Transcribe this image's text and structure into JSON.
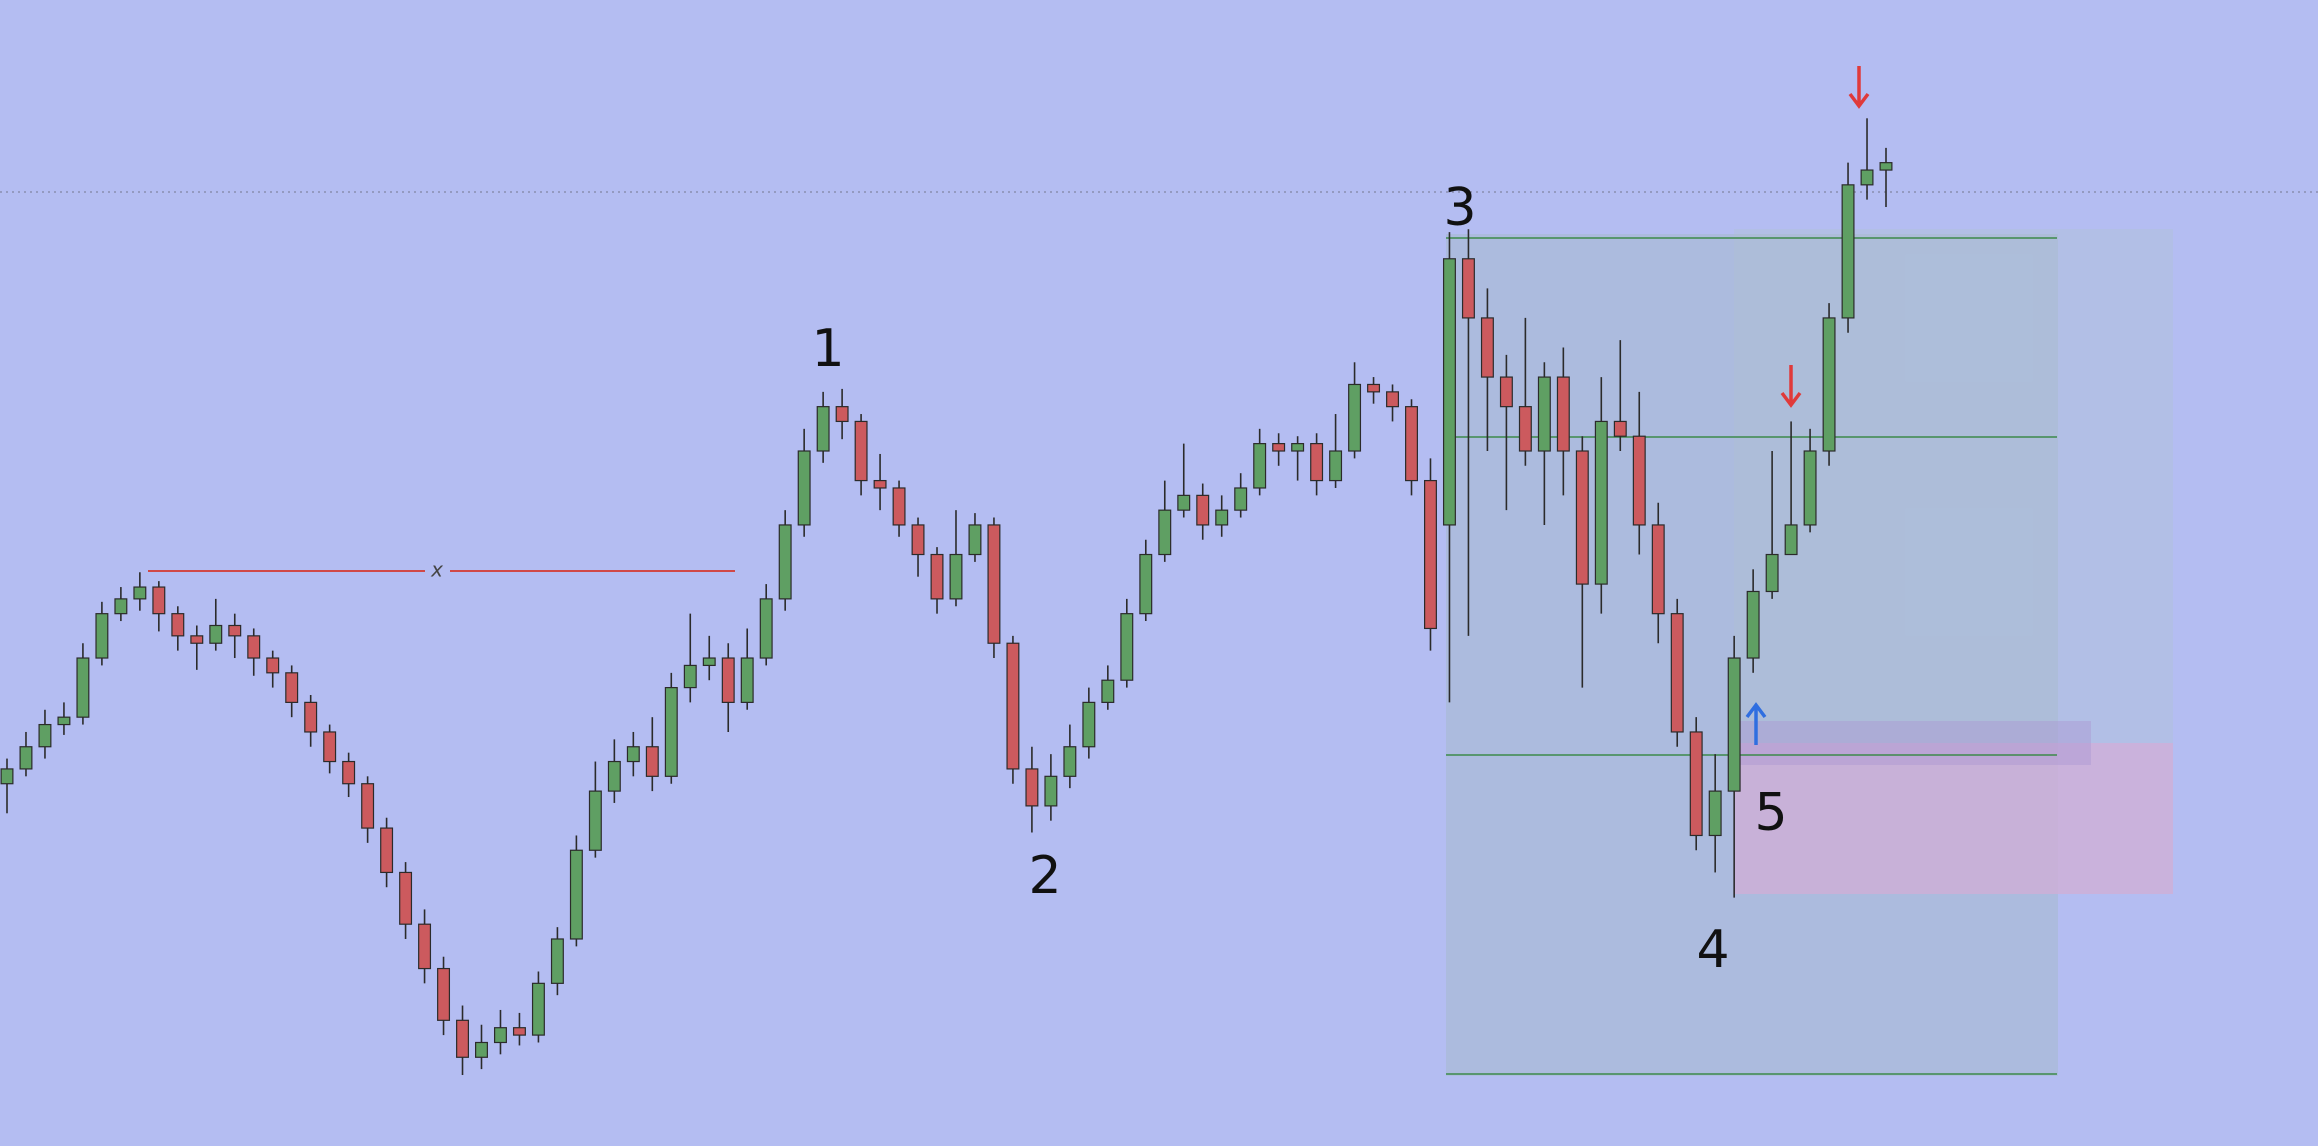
{
  "chart_data": {
    "type": "candlestick",
    "open": [
      245,
      255,
      270,
      285,
      290,
      330,
      360,
      370,
      378,
      360,
      345,
      340,
      352,
      345,
      330,
      320,
      300,
      280,
      260,
      245,
      215,
      185,
      150,
      120,
      85,
      60,
      70,
      80,
      75,
      110,
      140,
      200,
      240,
      260,
      270,
      250,
      310,
      325,
      330,
      300,
      330,
      370,
      420,
      470,
      500,
      490,
      450,
      445,
      420,
      400,
      370,
      400,
      420,
      340,
      255,
      230,
      250,
      270,
      300,
      315,
      360,
      400,
      430,
      440,
      420,
      430,
      445,
      475,
      470,
      475,
      450,
      470,
      515,
      510,
      500,
      450,
      420,
      600,
      560,
      520,
      500,
      470,
      520,
      470,
      380,
      490,
      480,
      420,
      360,
      280,
      210,
      240,
      330,
      375,
      400,
      420,
      470,
      560,
      650,
      660
    ],
    "high": [
      262,
      280,
      295,
      300,
      340,
      368,
      378,
      388,
      382,
      365,
      352,
      370,
      360,
      350,
      335,
      325,
      305,
      285,
      266,
      250,
      222,
      192,
      160,
      128,
      95,
      82,
      92,
      90,
      118,
      148,
      210,
      260,
      275,
      280,
      290,
      320,
      360,
      345,
      340,
      350,
      380,
      430,
      485,
      510,
      512,
      495,
      468,
      450,
      425,
      405,
      430,
      428,
      425,
      345,
      270,
      265,
      285,
      310,
      325,
      370,
      410,
      450,
      475,
      448,
      440,
      455,
      485,
      482,
      480,
      482,
      495,
      530,
      520,
      515,
      505,
      465,
      618,
      620,
      580,
      535,
      560,
      530,
      540,
      480,
      520,
      545,
      510,
      435,
      370,
      290,
      265,
      345,
      390,
      470,
      490,
      485,
      570,
      665,
      695,
      675
    ],
    "low": [
      225,
      250,
      262,
      278,
      285,
      325,
      355,
      362,
      348,
      335,
      322,
      335,
      330,
      318,
      310,
      290,
      270,
      252,
      236,
      205,
      175,
      140,
      110,
      75,
      48,
      52,
      62,
      68,
      70,
      102,
      135,
      195,
      232,
      250,
      240,
      245,
      300,
      315,
      280,
      295,
      325,
      362,
      412,
      462,
      478,
      440,
      430,
      412,
      385,
      360,
      365,
      395,
      330,
      245,
      212,
      220,
      242,
      262,
      295,
      310,
      355,
      395,
      425,
      410,
      412,
      425,
      440,
      460,
      450,
      440,
      445,
      465,
      502,
      490,
      440,
      335,
      300,
      345,
      470,
      430,
      460,
      420,
      440,
      310,
      360,
      470,
      400,
      340,
      270,
      200,
      185,
      168,
      320,
      370,
      405,
      415,
      460,
      550,
      640,
      635
    ],
    "close": [
      255,
      270,
      285,
      290,
      330,
      360,
      370,
      378,
      360,
      345,
      340,
      352,
      345,
      330,
      320,
      300,
      280,
      260,
      245,
      215,
      185,
      150,
      120,
      85,
      60,
      70,
      80,
      75,
      110,
      140,
      200,
      240,
      260,
      270,
      250,
      310,
      325,
      330,
      300,
      330,
      370,
      420,
      470,
      500,
      490,
      450,
      445,
      420,
      400,
      370,
      400,
      420,
      340,
      255,
      230,
      250,
      270,
      300,
      315,
      360,
      400,
      430,
      440,
      420,
      430,
      445,
      475,
      470,
      475,
      450,
      470,
      515,
      510,
      500,
      450,
      350,
      600,
      560,
      520,
      500,
      470,
      520,
      470,
      380,
      490,
      480,
      420,
      360,
      280,
      210,
      240,
      330,
      375,
      400,
      420,
      470,
      560,
      650,
      660,
      665
    ],
    "ylim": [
      0,
      775
    ],
    "up_color": "#5f9f63",
    "down_color": "#cc5a5e",
    "wick_color": "#2b2b2b",
    "annotations": [
      "1",
      "2",
      "3",
      "4",
      "5"
    ],
    "marker": "x"
  }
}
